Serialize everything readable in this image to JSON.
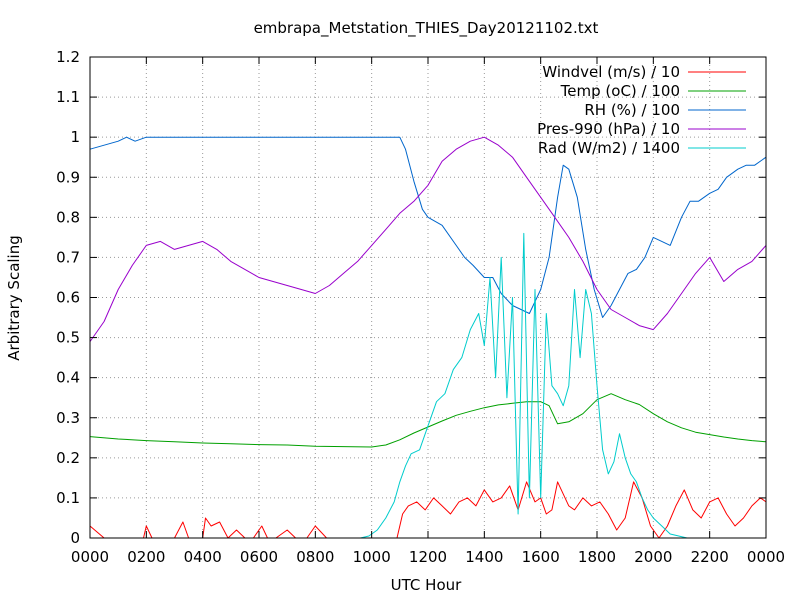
{
  "chart_data": {
    "type": "line",
    "title": "embrapa_Metstation_THIES_Day20121102.txt",
    "xlabel": "UTC Hour",
    "ylabel": "Arbitrary Scaling",
    "xlim": [
      0,
      24
    ],
    "ylim": [
      0,
      1.2
    ],
    "x_ticks": [
      {
        "value": 0,
        "label": "0000"
      },
      {
        "value": 2,
        "label": "0200"
      },
      {
        "value": 4,
        "label": "0400"
      },
      {
        "value": 6,
        "label": "0600"
      },
      {
        "value": 8,
        "label": "0800"
      },
      {
        "value": 10,
        "label": "1000"
      },
      {
        "value": 12,
        "label": "1200"
      },
      {
        "value": 14,
        "label": "1400"
      },
      {
        "value": 16,
        "label": "1600"
      },
      {
        "value": 18,
        "label": "1800"
      },
      {
        "value": 20,
        "label": "2000"
      },
      {
        "value": 22,
        "label": "2200"
      },
      {
        "value": 24,
        "label": "0000"
      }
    ],
    "y_ticks": [
      {
        "value": 0,
        "label": "0"
      },
      {
        "value": 0.1,
        "label": "0.1"
      },
      {
        "value": 0.2,
        "label": "0.2"
      },
      {
        "value": 0.3,
        "label": "0.3"
      },
      {
        "value": 0.4,
        "label": "0.4"
      },
      {
        "value": 0.5,
        "label": "0.5"
      },
      {
        "value": 0.6,
        "label": "0.6"
      },
      {
        "value": 0.7,
        "label": "0.7"
      },
      {
        "value": 0.8,
        "label": "0.8"
      },
      {
        "value": 0.9,
        "label": "0.9"
      },
      {
        "value": 1.0,
        "label": "1"
      },
      {
        "value": 1.1,
        "label": "1.1"
      },
      {
        "value": 1.2,
        "label": "1.2"
      }
    ],
    "grid": true,
    "legend_position": "top-right",
    "series": [
      {
        "name": "Windvel (m/s) / 10",
        "color": "#ff0000",
        "x": [
          0,
          0.5,
          1,
          1.5,
          1.9,
          2,
          2.2,
          2.5,
          3,
          3.3,
          3.5,
          4,
          4.1,
          4.3,
          4.6,
          4.9,
          5.2,
          5.5,
          5.8,
          6.1,
          6.3,
          6.6,
          7,
          7.3,
          7.7,
          8,
          8.4,
          8.8,
          9.2,
          9.6,
          10,
          10.3,
          10.6,
          10.9,
          11.1,
          11.3,
          11.6,
          11.9,
          12.2,
          12.5,
          12.8,
          13.1,
          13.4,
          13.7,
          14,
          14.3,
          14.6,
          14.9,
          15.2,
          15.5,
          15.8,
          16,
          16.2,
          16.4,
          16.6,
          16.8,
          17,
          17.2,
          17.5,
          17.8,
          18.1,
          18.4,
          18.7,
          19,
          19.3,
          19.6,
          19.9,
          20.2,
          20.5,
          20.8,
          21.1,
          21.4,
          21.7,
          22,
          22.3,
          22.6,
          22.9,
          23.2,
          23.5,
          23.8,
          24
        ],
        "y": [
          0.03,
          0,
          0,
          0,
          0,
          0.03,
          0,
          0,
          0,
          0.04,
          0,
          0,
          0.05,
          0.03,
          0.04,
          0,
          0.02,
          0,
          0,
          0.03,
          0,
          0,
          0.02,
          0,
          0,
          0.03,
          0,
          0,
          0,
          0,
          0,
          0,
          0,
          0,
          0.06,
          0.08,
          0.09,
          0.07,
          0.1,
          0.08,
          0.06,
          0.09,
          0.1,
          0.08,
          0.12,
          0.09,
          0.1,
          0.13,
          0.07,
          0.14,
          0.09,
          0.1,
          0.06,
          0.07,
          0.14,
          0.11,
          0.08,
          0.07,
          0.1,
          0.08,
          0.09,
          0.06,
          0.02,
          0.05,
          0.14,
          0.1,
          0.03,
          0,
          0.03,
          0.08,
          0.12,
          0.07,
          0.05,
          0.09,
          0.1,
          0.06,
          0.03,
          0.05,
          0.08,
          0.1,
          0.09
        ]
      },
      {
        "name": "Temp (oC) / 100",
        "color": "#00a000",
        "x": [
          0,
          1,
          2,
          3,
          4,
          5,
          6,
          7,
          8,
          9,
          10,
          10.5,
          11,
          11.5,
          12,
          12.5,
          13,
          13.5,
          14,
          14.5,
          15,
          15.5,
          16,
          16.3,
          16.6,
          17,
          17.5,
          18,
          18.5,
          19,
          19.5,
          20,
          20.5,
          21,
          21.5,
          22,
          22.5,
          23,
          23.5,
          24
        ],
        "y": [
          0.253,
          0.247,
          0.243,
          0.24,
          0.237,
          0.235,
          0.233,
          0.232,
          0.229,
          0.228,
          0.227,
          0.232,
          0.245,
          0.262,
          0.277,
          0.292,
          0.306,
          0.316,
          0.325,
          0.332,
          0.336,
          0.34,
          0.34,
          0.33,
          0.285,
          0.29,
          0.31,
          0.345,
          0.36,
          0.345,
          0.333,
          0.31,
          0.29,
          0.275,
          0.264,
          0.258,
          0.252,
          0.247,
          0.243,
          0.24
        ]
      },
      {
        "name": "RH (%) / 100",
        "color": "#0066cc",
        "x": [
          0,
          0.5,
          1,
          1.3,
          1.6,
          2,
          2.5,
          3,
          4,
          5,
          6,
          7,
          8,
          9,
          10,
          11,
          11.2,
          11.5,
          11.8,
          12,
          12.5,
          13,
          13.3,
          13.6,
          14,
          14.3,
          14.6,
          15,
          15.3,
          15.6,
          16,
          16.3,
          16.6,
          16.8,
          17,
          17.3,
          17.6,
          17.9,
          18.2,
          18.5,
          18.8,
          19.1,
          19.4,
          19.7,
          20,
          20.3,
          20.6,
          21,
          21.3,
          21.6,
          22,
          22.3,
          22.6,
          23,
          23.3,
          23.6,
          24
        ],
        "y": [
          0.97,
          0.98,
          0.99,
          1.0,
          0.99,
          1.0,
          1.0,
          1.0,
          1.0,
          1.0,
          1.0,
          1.0,
          1.0,
          1.0,
          1.0,
          1.0,
          0.97,
          0.89,
          0.82,
          0.8,
          0.78,
          0.73,
          0.7,
          0.68,
          0.65,
          0.65,
          0.61,
          0.58,
          0.57,
          0.56,
          0.62,
          0.7,
          0.85,
          0.93,
          0.92,
          0.85,
          0.72,
          0.62,
          0.55,
          0.58,
          0.62,
          0.66,
          0.67,
          0.7,
          0.75,
          0.74,
          0.73,
          0.8,
          0.84,
          0.84,
          0.86,
          0.87,
          0.9,
          0.92,
          0.93,
          0.93,
          0.95
        ]
      },
      {
        "name": "Pres-990 (hPa) / 10",
        "color": "#9900cc",
        "x": [
          0,
          0.5,
          1,
          1.5,
          2,
          2.5,
          3,
          3.5,
          4,
          4.5,
          5,
          5.5,
          6,
          6.5,
          7,
          7.5,
          8,
          8.5,
          9,
          9.5,
          10,
          10.5,
          11,
          11.5,
          12,
          12.5,
          13,
          13.5,
          14,
          14.5,
          15,
          15.5,
          16,
          16.5,
          17,
          17.5,
          18,
          18.5,
          19,
          19.5,
          20,
          20.5,
          21,
          21.5,
          22,
          22.5,
          23,
          23.5,
          24
        ],
        "y": [
          0.49,
          0.54,
          0.62,
          0.68,
          0.73,
          0.74,
          0.72,
          0.73,
          0.74,
          0.72,
          0.69,
          0.67,
          0.65,
          0.64,
          0.63,
          0.62,
          0.61,
          0.63,
          0.66,
          0.69,
          0.73,
          0.77,
          0.81,
          0.84,
          0.88,
          0.94,
          0.97,
          0.99,
          1.0,
          0.98,
          0.95,
          0.9,
          0.85,
          0.8,
          0.75,
          0.69,
          0.62,
          0.57,
          0.55,
          0.53,
          0.52,
          0.56,
          0.61,
          0.66,
          0.7,
          0.64,
          0.67,
          0.69,
          0.73
        ]
      },
      {
        "name": "Rad (W/m2) / 1400",
        "color": "#00cccc",
        "x": [
          0,
          9.6,
          9.9,
          10.2,
          10.5,
          10.8,
          11,
          11.2,
          11.4,
          11.7,
          12,
          12.3,
          12.6,
          12.9,
          13.2,
          13.5,
          13.8,
          14.0,
          14.2,
          14.4,
          14.6,
          14.8,
          15.0,
          15.2,
          15.4,
          15.6,
          15.8,
          16.0,
          16.2,
          16.4,
          16.6,
          16.8,
          17.0,
          17.2,
          17.4,
          17.6,
          17.8,
          18.0,
          18.2,
          18.4,
          18.6,
          18.8,
          19.0,
          19.2,
          19.4,
          19.6,
          19.8,
          20.0,
          20.3,
          20.6,
          20.9,
          21.2,
          24
        ],
        "y": [
          0,
          0,
          0.005,
          0.02,
          0.05,
          0.09,
          0.14,
          0.18,
          0.21,
          0.22,
          0.28,
          0.34,
          0.36,
          0.42,
          0.45,
          0.52,
          0.56,
          0.48,
          0.65,
          0.4,
          0.7,
          0.35,
          0.6,
          0.06,
          0.76,
          0.1,
          0.62,
          0.1,
          0.56,
          0.38,
          0.36,
          0.33,
          0.38,
          0.62,
          0.45,
          0.62,
          0.56,
          0.38,
          0.22,
          0.16,
          0.19,
          0.26,
          0.2,
          0.16,
          0.14,
          0.1,
          0.07,
          0.05,
          0.03,
          0.01,
          0.005,
          0,
          0
        ]
      }
    ]
  }
}
